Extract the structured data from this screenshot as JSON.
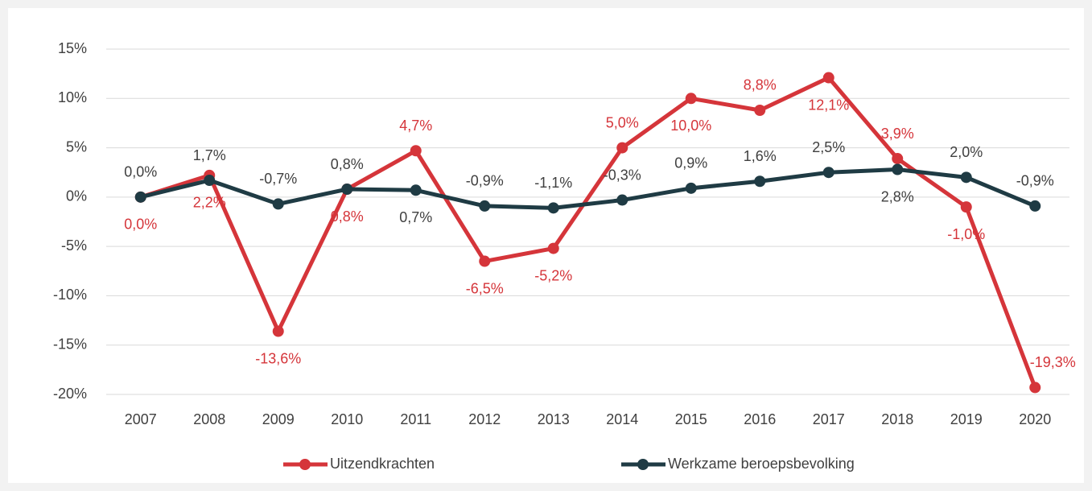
{
  "chart_data": {
    "type": "line",
    "categories": [
      "2007",
      "2008",
      "2009",
      "2010",
      "2011",
      "2012",
      "2013",
      "2014",
      "2015",
      "2016",
      "2017",
      "2018",
      "2019",
      "2020"
    ],
    "series": [
      {
        "name": "Uitzendkrachten",
        "color": "#d5353a",
        "values": [
          0.0,
          2.2,
          -13.6,
          0.8,
          4.7,
          -6.5,
          -5.2,
          5.0,
          10.0,
          8.8,
          12.1,
          3.9,
          -1.0,
          -19.3
        ],
        "value_labels": [
          "0,0%",
          "2,2%",
          "-13,6%",
          "0,8%",
          "4,7%",
          "-6,5%",
          "-5,2%",
          "5,0%",
          "10,0%",
          "8,8%",
          "12,1%",
          "3,9%",
          "-1,0%",
          "-19,3%"
        ]
      },
      {
        "name": "Werkzame beroepsbevolking",
        "color": "#1f3b44",
        "values": [
          0.0,
          1.7,
          -0.7,
          0.8,
          0.7,
          -0.9,
          -1.1,
          -0.3,
          0.9,
          1.6,
          2.5,
          2.8,
          2.0,
          -0.9
        ],
        "value_labels": [
          "0,0%",
          "1,7%",
          "-0,7%",
          "0,8%",
          "0,7%",
          "-0,9%",
          "-1,1%",
          "-0,3%",
          "0,9%",
          "1,6%",
          "2,5%",
          "2,8%",
          "2,0%",
          "-0,9%"
        ]
      }
    ],
    "ylim": [
      -20,
      15
    ],
    "yticks": [
      {
        "value": -20,
        "label": "-20%"
      },
      {
        "value": -15,
        "label": "-15%"
      },
      {
        "value": -10,
        "label": "-10%"
      },
      {
        "value": -5,
        "label": "-5%"
      },
      {
        "value": 0,
        "label": "0%"
      },
      {
        "value": 5,
        "label": "5%"
      },
      {
        "value": 10,
        "label": "10%"
      },
      {
        "value": 15,
        "label": "15%"
      }
    ],
    "grid": true,
    "legend": "bottom"
  }
}
